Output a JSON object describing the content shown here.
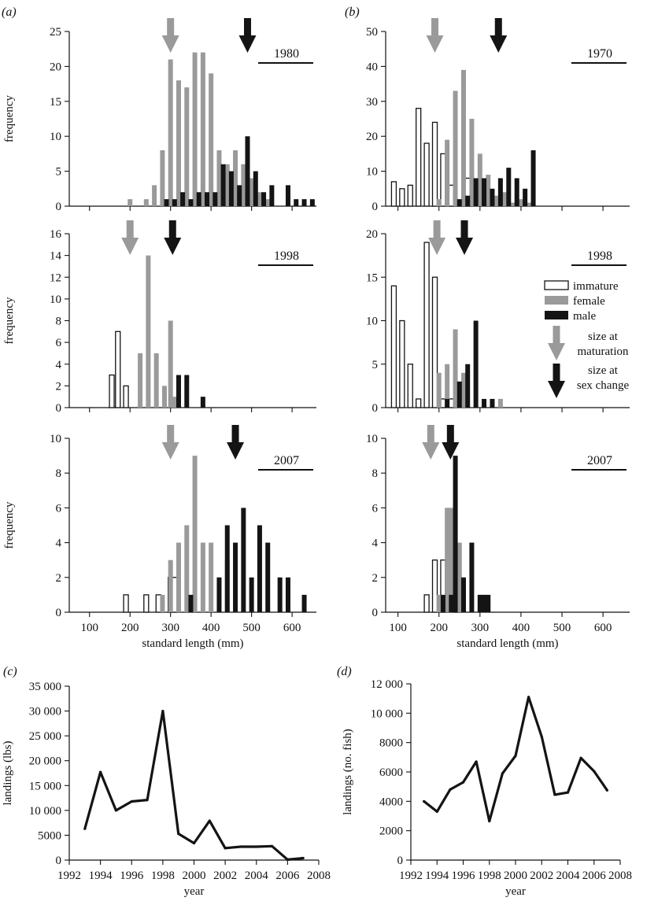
{
  "chart_data": [
    {
      "id": "a1980",
      "panel_label": "(a)",
      "type": "bar",
      "year_label": "1980",
      "xlim": [
        50,
        660
      ],
      "ylim": [
        0,
        25
      ],
      "yticks": [
        0,
        5,
        10,
        15,
        20,
        25
      ],
      "xticks": [
        100,
        200,
        300,
        400,
        500,
        600
      ],
      "show_xtick_labels": false,
      "ylabel": "frequency",
      "xlabel": "",
      "arrows": {
        "maturation": 300,
        "sex_change": 490
      },
      "series": [
        {
          "name": "female",
          "points": [
            [
              200,
              1
            ],
            [
              240,
              1
            ],
            [
              260,
              3
            ],
            [
              280,
              8
            ],
            [
              300,
              21
            ],
            [
              320,
              18
            ],
            [
              340,
              17
            ],
            [
              360,
              22
            ],
            [
              380,
              22
            ],
            [
              400,
              19
            ],
            [
              420,
              8
            ],
            [
              440,
              6
            ],
            [
              460,
              8
            ],
            [
              480,
              6
            ],
            [
              500,
              4
            ],
            [
              520,
              2
            ],
            [
              540,
              1
            ]
          ]
        },
        {
          "name": "male",
          "points": [
            [
              290,
              1
            ],
            [
              310,
              1
            ],
            [
              330,
              2
            ],
            [
              350,
              1
            ],
            [
              370,
              2
            ],
            [
              390,
              2
            ],
            [
              410,
              2
            ],
            [
              430,
              6
            ],
            [
              450,
              5
            ],
            [
              470,
              3
            ],
            [
              490,
              10
            ],
            [
              510,
              5
            ],
            [
              530,
              2
            ],
            [
              550,
              3
            ],
            [
              590,
              3
            ],
            [
              610,
              1
            ],
            [
              630,
              1
            ],
            [
              650,
              1
            ]
          ]
        },
        {
          "name": "immature",
          "points": []
        }
      ]
    },
    {
      "id": "b1970",
      "panel_label": "(b)",
      "type": "bar",
      "year_label": "1970",
      "xlim": [
        70,
        665
      ],
      "ylim": [
        0,
        50
      ],
      "yticks": [
        0,
        10,
        20,
        30,
        40,
        50
      ],
      "xticks": [
        100,
        200,
        300,
        400,
        500,
        600
      ],
      "show_xtick_labels": false,
      "ylabel": "",
      "xlabel": "",
      "arrows": {
        "maturation": 190,
        "sex_change": 345
      },
      "series": [
        {
          "name": "immature",
          "points": [
            [
              90,
              7
            ],
            [
              110,
              5
            ],
            [
              130,
              6
            ],
            [
              150,
              28
            ],
            [
              170,
              18
            ],
            [
              190,
              24
            ],
            [
              210,
              15
            ],
            [
              230,
              6
            ],
            [
              250,
              1
            ],
            [
              270,
              8
            ]
          ]
        },
        {
          "name": "female",
          "points": [
            [
              200,
              2
            ],
            [
              220,
              19
            ],
            [
              240,
              33
            ],
            [
              260,
              39
            ],
            [
              280,
              25
            ],
            [
              300,
              15
            ],
            [
              320,
              9
            ],
            [
              340,
              3
            ],
            [
              360,
              4
            ],
            [
              380,
              1
            ],
            [
              400,
              2
            ],
            [
              420,
              1
            ]
          ]
        },
        {
          "name": "male",
          "points": [
            [
              250,
              2
            ],
            [
              270,
              3
            ],
            [
              290,
              8
            ],
            [
              310,
              8
            ],
            [
              330,
              5
            ],
            [
              350,
              8
            ],
            [
              370,
              11
            ],
            [
              390,
              8
            ],
            [
              410,
              5
            ],
            [
              430,
              16
            ]
          ]
        }
      ]
    },
    {
      "id": "a1998",
      "panel_label": "",
      "type": "bar",
      "year_label": "1998",
      "xlim": [
        50,
        660
      ],
      "ylim": [
        0,
        16
      ],
      "yticks": [
        0,
        2,
        4,
        6,
        8,
        10,
        12,
        14,
        16
      ],
      "xticks": [
        100,
        200,
        300,
        400,
        500,
        600
      ],
      "show_xtick_labels": false,
      "ylabel": "frequency",
      "xlabel": "",
      "arrows": {
        "maturation": 200,
        "sex_change": 305
      },
      "series": [
        {
          "name": "immature",
          "points": [
            [
              155,
              3
            ],
            [
              170,
              7
            ],
            [
              190,
              2
            ]
          ]
        },
        {
          "name": "female",
          "points": [
            [
              225,
              5
            ],
            [
              245,
              14
            ],
            [
              265,
              5
            ],
            [
              285,
              2
            ],
            [
              300,
              8
            ],
            [
              310,
              1
            ]
          ]
        },
        {
          "name": "male",
          "points": [
            [
              320,
              3
            ],
            [
              340,
              3
            ],
            [
              380,
              1
            ]
          ]
        }
      ]
    },
    {
      "id": "b1998",
      "panel_label": "",
      "type": "bar",
      "year_label": "1998",
      "xlim": [
        70,
        665
      ],
      "ylim": [
        0,
        20
      ],
      "yticks": [
        0,
        5,
        10,
        15,
        20
      ],
      "xticks": [
        100,
        200,
        300,
        400,
        500,
        600
      ],
      "show_xtick_labels": false,
      "ylabel": "",
      "xlabel": "",
      "arrows": {
        "maturation": 195,
        "sex_change": 262
      },
      "series": [
        {
          "name": "immature",
          "points": [
            [
              90,
              14
            ],
            [
              110,
              10
            ],
            [
              130,
              5
            ],
            [
              150,
              1
            ],
            [
              170,
              19
            ],
            [
              190,
              15
            ],
            [
              210,
              1
            ],
            [
              230,
              1
            ]
          ]
        },
        {
          "name": "female",
          "points": [
            [
              200,
              4
            ],
            [
              220,
              5
            ],
            [
              240,
              9
            ],
            [
              260,
              4
            ],
            [
              350,
              1
            ]
          ]
        },
        {
          "name": "male",
          "points": [
            [
              220,
              1
            ],
            [
              250,
              3
            ],
            [
              270,
              5
            ],
            [
              290,
              10
            ],
            [
              310,
              1
            ],
            [
              330,
              1
            ]
          ]
        }
      ]
    },
    {
      "id": "a2007",
      "panel_label": "",
      "type": "bar",
      "year_label": "2007",
      "xlim": [
        50,
        660
      ],
      "ylim": [
        0,
        10
      ],
      "yticks": [
        0,
        2,
        4,
        6,
        8,
        10
      ],
      "xticks": [
        100,
        200,
        300,
        400,
        500,
        600
      ],
      "show_xtick_labels": true,
      "ylabel": "frequency",
      "xlabel": "standard length (mm)",
      "arrows": {
        "maturation": 300,
        "sex_change": 460
      },
      "series": [
        {
          "name": "immature",
          "points": [
            [
              190,
              1
            ],
            [
              240,
              1
            ],
            [
              270,
              1
            ],
            [
              300,
              2
            ],
            [
              310,
              2
            ]
          ]
        },
        {
          "name": "female",
          "points": [
            [
              280,
              1
            ],
            [
              300,
              3
            ],
            [
              320,
              4
            ],
            [
              340,
              5
            ],
            [
              360,
              9
            ],
            [
              380,
              4
            ],
            [
              400,
              4
            ],
            [
              420,
              2
            ],
            [
              440,
              3
            ]
          ]
        },
        {
          "name": "male",
          "points": [
            [
              350,
              1
            ],
            [
              420,
              2
            ],
            [
              440,
              5
            ],
            [
              460,
              4
            ],
            [
              480,
              6
            ],
            [
              500,
              2
            ],
            [
              520,
              5
            ],
            [
              540,
              4
            ],
            [
              570,
              2
            ],
            [
              590,
              2
            ],
            [
              610,
              0
            ],
            [
              630,
              1
            ]
          ]
        }
      ]
    },
    {
      "id": "b2007",
      "panel_label": "",
      "type": "bar",
      "year_label": "2007",
      "xlim": [
        70,
        665
      ],
      "ylim": [
        0,
        10
      ],
      "yticks": [
        0,
        2,
        4,
        6,
        8,
        10
      ],
      "xticks": [
        100,
        200,
        300,
        400,
        500,
        600
      ],
      "show_xtick_labels": true,
      "ylabel": "",
      "xlabel": "standard length (mm)",
      "arrows": {
        "maturation": 180,
        "sex_change": 228
      },
      "series": [
        {
          "name": "immature",
          "points": [
            [
              170,
              1
            ],
            [
              190,
              3
            ],
            [
              210,
              3
            ],
            [
              240,
              1
            ]
          ]
        },
        {
          "name": "female",
          "points": [
            [
              200,
              1
            ],
            [
              220,
              6
            ],
            [
              230,
              6
            ],
            [
              250,
              4
            ]
          ]
        },
        {
          "name": "male",
          "points": [
            [
              210,
              1
            ],
            [
              230,
              1
            ],
            [
              240,
              9
            ],
            [
              260,
              2
            ],
            [
              280,
              4
            ],
            [
              300,
              1
            ],
            [
              310,
              1
            ],
            [
              320,
              1
            ]
          ]
        }
      ]
    },
    {
      "id": "c",
      "panel_label": "(c)",
      "type": "line",
      "xlim": [
        1992,
        2008
      ],
      "ylim": [
        0,
        35000
      ],
      "xticks": [
        1992,
        1994,
        1996,
        1998,
        2000,
        2002,
        2004,
        2006,
        2008
      ],
      "yticks": [
        0,
        5000,
        10000,
        15000,
        20000,
        25000,
        30000,
        35000
      ],
      "ytick_labels": [
        "0",
        "5000",
        "10 000",
        "15 000",
        "20 000",
        "25 000",
        "30 000",
        "35 000"
      ],
      "xlabel": "year",
      "ylabel": "landings (lbs)",
      "x": [
        1993,
        1994,
        1995,
        1996,
        1997,
        1998,
        1999,
        2000,
        2001,
        2002,
        2003,
        2004,
        2005,
        2006,
        2007
      ],
      "y": [
        6300,
        17700,
        10000,
        11800,
        12100,
        30000,
        5300,
        3400,
        7900,
        2400,
        2700,
        2700,
        2800,
        100,
        400
      ]
    },
    {
      "id": "d",
      "panel_label": "(d)",
      "type": "line",
      "xlim": [
        1992,
        2008
      ],
      "ylim": [
        0,
        12000
      ],
      "xticks": [
        1992,
        1994,
        1996,
        1998,
        2000,
        2002,
        2004,
        2006,
        2008
      ],
      "yticks": [
        0,
        2000,
        4000,
        6000,
        8000,
        10000,
        12000
      ],
      "ytick_labels": [
        "0",
        "2000",
        "4000",
        "6000",
        "8000",
        "10 000",
        "12 000"
      ],
      "xlabel": "year",
      "ylabel": "landings (no. fish)",
      "x": [
        1993,
        1994,
        1995,
        1996,
        1997,
        1998,
        1999,
        2000,
        2001,
        2002,
        2003,
        2004,
        2005,
        2006,
        2007
      ],
      "y": [
        4000,
        3300,
        4800,
        5300,
        6700,
        2650,
        5900,
        7100,
        11100,
        8400,
        4450,
        4600,
        6950,
        6050,
        4750
      ]
    }
  ],
  "legend": {
    "items": [
      {
        "key": "immature",
        "label": "immature"
      },
      {
        "key": "female",
        "label": "female"
      },
      {
        "key": "male",
        "label": "male"
      }
    ],
    "maturation_label_1": "size at",
    "maturation_label_2": "maturation",
    "sexchange_label_1": "size at",
    "sexchange_label_2": "sex change"
  },
  "colors": {
    "female": "#9a9a9a",
    "male": "#141414",
    "immature": "#ffffff"
  }
}
